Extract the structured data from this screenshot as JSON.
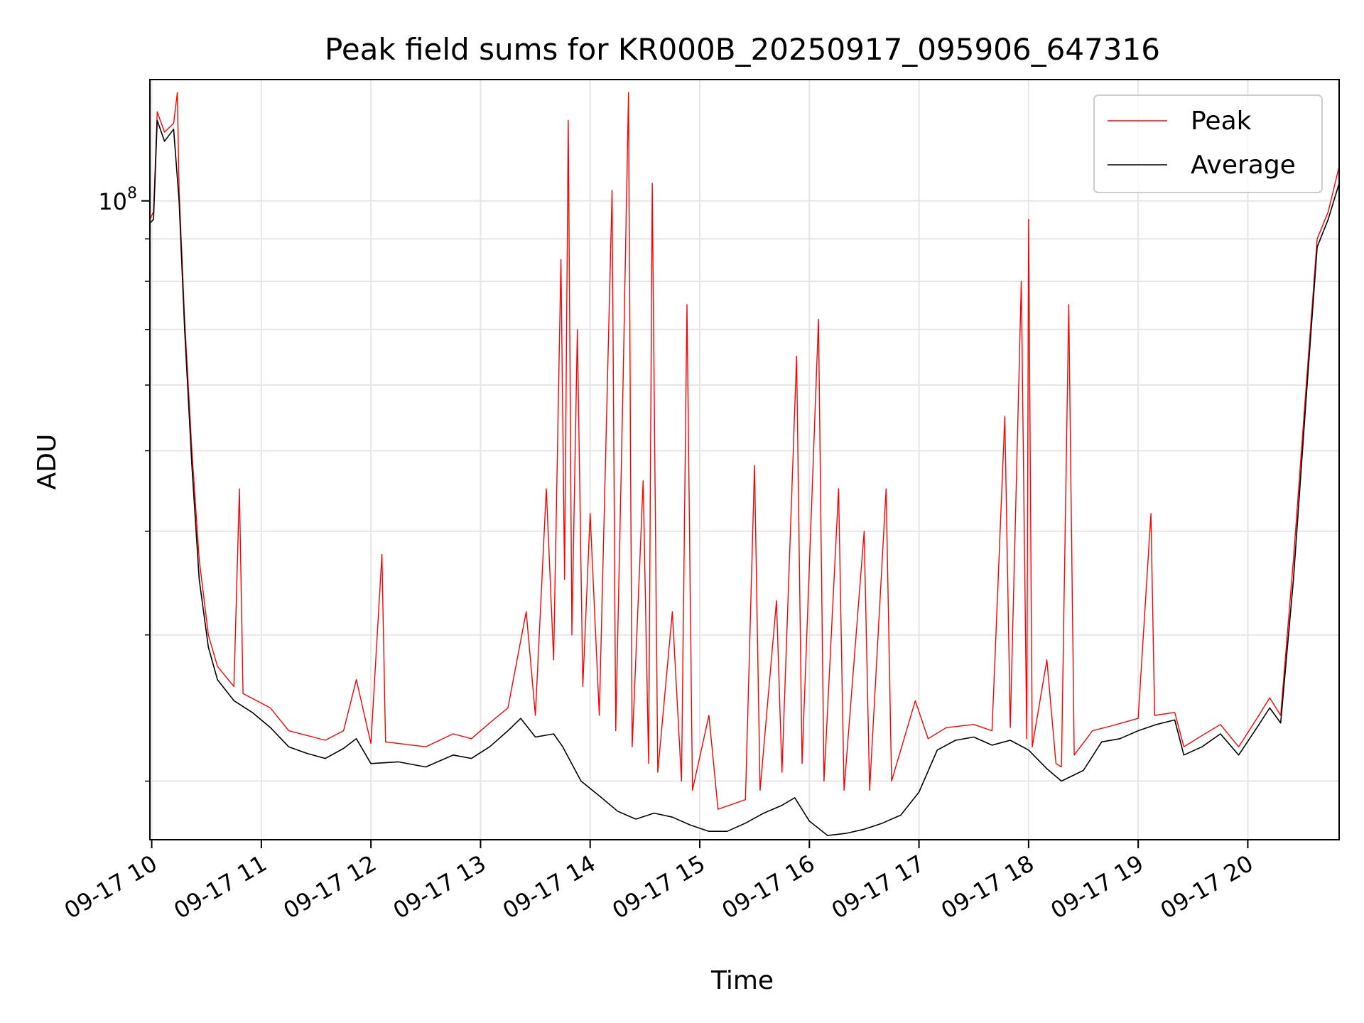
{
  "chart_data": {
    "type": "line",
    "title": "Peak field sums for KR000B_20250917_095906_647316",
    "xlabel": "Time",
    "ylabel": "ADU",
    "y_scale": "log",
    "ylim": [
      17000000,
      140000000
    ],
    "y_major_tick": {
      "value": 100000000,
      "label": "10",
      "exponent": "8"
    },
    "y_minor_ticks": [
      20000000,
      30000000,
      40000000,
      50000000,
      60000000,
      70000000,
      80000000,
      90000000
    ],
    "xlim": [
      "2025-09-17 09:59",
      "2025-09-17 20:50"
    ],
    "x_ticks": [
      {
        "time": "2025-09-17 10:00",
        "label": "09-17 10"
      },
      {
        "time": "2025-09-17 11:00",
        "label": "09-17 11"
      },
      {
        "time": "2025-09-17 12:00",
        "label": "09-17 12"
      },
      {
        "time": "2025-09-17 13:00",
        "label": "09-17 13"
      },
      {
        "time": "2025-09-17 14:00",
        "label": "09-17 14"
      },
      {
        "time": "2025-09-17 15:00",
        "label": "09-17 15"
      },
      {
        "time": "2025-09-17 16:00",
        "label": "09-17 16"
      },
      {
        "time": "2025-09-17 17:00",
        "label": "09-17 17"
      },
      {
        "time": "2025-09-17 18:00",
        "label": "09-17 18"
      },
      {
        "time": "2025-09-17 19:00",
        "label": "09-17 19"
      },
      {
        "time": "2025-09-17 20:00",
        "label": "09-17 20"
      }
    ],
    "grid": true,
    "legend_position": "top-right",
    "series": [
      {
        "name": "Average",
        "color": "#000000",
        "points": [
          [
            "2025-09-17 09:59",
            94000000
          ],
          [
            "2025-09-17 10:01",
            95000000
          ],
          [
            "2025-09-17 10:03",
            125000000
          ],
          [
            "2025-09-17 10:07",
            118000000
          ],
          [
            "2025-09-17 10:12",
            122000000
          ],
          [
            "2025-09-17 10:15",
            100000000
          ],
          [
            "2025-09-17 10:18",
            70000000
          ],
          [
            "2025-09-17 10:22",
            48000000
          ],
          [
            "2025-09-17 10:26",
            35000000
          ],
          [
            "2025-09-17 10:31",
            29000000
          ],
          [
            "2025-09-17 10:36",
            26500000
          ],
          [
            "2025-09-17 10:45",
            25000000
          ],
          [
            "2025-09-17 10:55",
            24200000
          ],
          [
            "2025-09-17 11:05",
            23200000
          ],
          [
            "2025-09-17 11:15",
            22000000
          ],
          [
            "2025-09-17 11:25",
            21600000
          ],
          [
            "2025-09-17 11:35",
            21300000
          ],
          [
            "2025-09-17 11:45",
            21900000
          ],
          [
            "2025-09-17 11:52",
            22500000
          ],
          [
            "2025-09-17 12:00",
            21000000
          ],
          [
            "2025-09-17 12:15",
            21100000
          ],
          [
            "2025-09-17 12:30",
            20800000
          ],
          [
            "2025-09-17 12:45",
            21500000
          ],
          [
            "2025-09-17 12:55",
            21300000
          ],
          [
            "2025-09-17 13:05",
            22000000
          ],
          [
            "2025-09-17 13:15",
            23000000
          ],
          [
            "2025-09-17 13:22",
            23800000
          ],
          [
            "2025-09-17 13:30",
            22600000
          ],
          [
            "2025-09-17 13:40",
            22800000
          ],
          [
            "2025-09-17 13:45",
            22000000
          ],
          [
            "2025-09-17 13:55",
            20000000
          ],
          [
            "2025-09-17 14:05",
            19200000
          ],
          [
            "2025-09-17 14:15",
            18400000
          ],
          [
            "2025-09-17 14:25",
            18000000
          ],
          [
            "2025-09-17 14:35",
            18300000
          ],
          [
            "2025-09-17 14:45",
            18100000
          ],
          [
            "2025-09-17 14:55",
            17700000
          ],
          [
            "2025-09-17 15:05",
            17400000
          ],
          [
            "2025-09-17 15:15",
            17400000
          ],
          [
            "2025-09-17 15:25",
            17800000
          ],
          [
            "2025-09-17 15:35",
            18300000
          ],
          [
            "2025-09-17 15:45",
            18700000
          ],
          [
            "2025-09-17 15:52",
            19100000
          ],
          [
            "2025-09-17 16:00",
            17900000
          ],
          [
            "2025-09-17 16:10",
            17200000
          ],
          [
            "2025-09-17 16:20",
            17300000
          ],
          [
            "2025-09-17 16:30",
            17500000
          ],
          [
            "2025-09-17 16:40",
            17800000
          ],
          [
            "2025-09-17 16:50",
            18200000
          ],
          [
            "2025-09-17 17:00",
            19400000
          ],
          [
            "2025-09-17 17:10",
            21800000
          ],
          [
            "2025-09-17 17:20",
            22400000
          ],
          [
            "2025-09-17 17:30",
            22600000
          ],
          [
            "2025-09-17 17:40",
            22100000
          ],
          [
            "2025-09-17 17:50",
            22400000
          ],
          [
            "2025-09-17 18:00",
            21800000
          ],
          [
            "2025-09-17 18:10",
            20700000
          ],
          [
            "2025-09-17 18:18",
            20000000
          ],
          [
            "2025-09-17 18:30",
            20600000
          ],
          [
            "2025-09-17 18:40",
            22300000
          ],
          [
            "2025-09-17 18:50",
            22500000
          ],
          [
            "2025-09-17 19:00",
            23000000
          ],
          [
            "2025-09-17 19:10",
            23400000
          ],
          [
            "2025-09-17 19:20",
            23700000
          ],
          [
            "2025-09-17 19:25",
            21500000
          ],
          [
            "2025-09-17 19:35",
            22000000
          ],
          [
            "2025-09-17 19:45",
            22800000
          ],
          [
            "2025-09-17 19:55",
            21500000
          ],
          [
            "2025-09-17 20:05",
            23200000
          ],
          [
            "2025-09-17 20:12",
            24500000
          ],
          [
            "2025-09-17 20:18",
            23500000
          ],
          [
            "2025-09-17 20:25",
            35000000
          ],
          [
            "2025-09-17 20:32",
            58000000
          ],
          [
            "2025-09-17 20:38",
            88000000
          ],
          [
            "2025-09-17 20:44",
            95000000
          ],
          [
            "2025-09-17 20:50",
            105000000
          ]
        ]
      },
      {
        "name": "Peak",
        "color": "#ff0000",
        "points": [
          [
            "2025-09-17 09:59",
            95000000
          ],
          [
            "2025-09-17 10:01",
            97000000
          ],
          [
            "2025-09-17 10:03",
            128000000
          ],
          [
            "2025-09-17 10:07",
            121000000
          ],
          [
            "2025-09-17 10:12",
            124000000
          ],
          [
            "2025-09-17 10:14",
            135000000
          ],
          [
            "2025-09-17 10:15",
            103000000
          ],
          [
            "2025-09-17 10:18",
            72000000
          ],
          [
            "2025-09-17 10:22",
            50000000
          ],
          [
            "2025-09-17 10:26",
            37000000
          ],
          [
            "2025-09-17 10:31",
            30000000
          ],
          [
            "2025-09-17 10:36",
            27500000
          ],
          [
            "2025-09-17 10:45",
            26000000
          ],
          [
            "2025-09-17 10:48",
            45000000
          ],
          [
            "2025-09-17 10:50",
            25500000
          ],
          [
            "2025-09-17 11:05",
            24500000
          ],
          [
            "2025-09-17 11:15",
            23000000
          ],
          [
            "2025-09-17 11:35",
            22400000
          ],
          [
            "2025-09-17 11:45",
            23000000
          ],
          [
            "2025-09-17 11:52",
            26500000
          ],
          [
            "2025-09-17 12:00",
            22200000
          ],
          [
            "2025-09-17 12:06",
            37500000
          ],
          [
            "2025-09-17 12:08",
            22300000
          ],
          [
            "2025-09-17 12:30",
            22000000
          ],
          [
            "2025-09-17 12:45",
            22800000
          ],
          [
            "2025-09-17 12:55",
            22500000
          ],
          [
            "2025-09-17 13:05",
            23500000
          ],
          [
            "2025-09-17 13:15",
            24500000
          ],
          [
            "2025-09-17 13:25",
            32000000
          ],
          [
            "2025-09-17 13:30",
            24000000
          ],
          [
            "2025-09-17 13:36",
            45000000
          ],
          [
            "2025-09-17 13:40",
            28000000
          ],
          [
            "2025-09-17 13:44",
            85000000
          ],
          [
            "2025-09-17 13:46",
            35000000
          ],
          [
            "2025-09-17 13:48",
            125000000
          ],
          [
            "2025-09-17 13:50",
            30000000
          ],
          [
            "2025-09-17 13:53",
            70000000
          ],
          [
            "2025-09-17 13:56",
            26000000
          ],
          [
            "2025-09-17 14:00",
            42000000
          ],
          [
            "2025-09-17 14:05",
            24000000
          ],
          [
            "2025-09-17 14:12",
            103000000
          ],
          [
            "2025-09-17 14:14",
            23000000
          ],
          [
            "2025-09-17 14:18",
            60000000
          ],
          [
            "2025-09-17 14:21",
            135000000
          ],
          [
            "2025-09-17 14:23",
            22000000
          ],
          [
            "2025-09-17 14:29",
            46000000
          ],
          [
            "2025-09-17 14:32",
            21000000
          ],
          [
            "2025-09-17 14:34",
            105000000
          ],
          [
            "2025-09-17 14:37",
            20500000
          ],
          [
            "2025-09-17 14:45",
            32000000
          ],
          [
            "2025-09-17 14:50",
            20000000
          ],
          [
            "2025-09-17 14:53",
            75000000
          ],
          [
            "2025-09-17 14:56",
            19500000
          ],
          [
            "2025-09-17 15:05",
            24000000
          ],
          [
            "2025-09-17 15:10",
            18500000
          ],
          [
            "2025-09-17 15:25",
            19000000
          ],
          [
            "2025-09-17 15:30",
            48000000
          ],
          [
            "2025-09-17 15:33",
            19500000
          ],
          [
            "2025-09-17 15:42",
            33000000
          ],
          [
            "2025-09-17 15:45",
            20500000
          ],
          [
            "2025-09-17 15:53",
            65000000
          ],
          [
            "2025-09-17 15:56",
            21000000
          ],
          [
            "2025-09-17 16:05",
            72000000
          ],
          [
            "2025-09-17 16:08",
            20000000
          ],
          [
            "2025-09-17 16:16",
            45000000
          ],
          [
            "2025-09-17 16:19",
            19500000
          ],
          [
            "2025-09-17 16:30",
            40000000
          ],
          [
            "2025-09-17 16:33",
            19500000
          ],
          [
            "2025-09-17 16:42",
            45000000
          ],
          [
            "2025-09-17 16:45",
            20000000
          ],
          [
            "2025-09-17 16:58",
            25000000
          ],
          [
            "2025-09-17 17:05",
            22500000
          ],
          [
            "2025-09-17 17:15",
            23200000
          ],
          [
            "2025-09-17 17:30",
            23400000
          ],
          [
            "2025-09-17 17:40",
            23000000
          ],
          [
            "2025-09-17 17:47",
            55000000
          ],
          [
            "2025-09-17 17:50",
            23200000
          ],
          [
            "2025-09-17 17:56",
            80000000
          ],
          [
            "2025-09-17 17:59",
            22500000
          ],
          [
            "2025-09-17 18:00",
            95000000
          ],
          [
            "2025-09-17 18:02",
            22000000
          ],
          [
            "2025-09-17 18:10",
            28000000
          ],
          [
            "2025-09-17 18:15",
            21000000
          ],
          [
            "2025-09-17 18:18",
            20800000
          ],
          [
            "2025-09-17 18:22",
            75000000
          ],
          [
            "2025-09-17 18:25",
            21500000
          ],
          [
            "2025-09-17 18:35",
            23000000
          ],
          [
            "2025-09-17 18:45",
            23300000
          ],
          [
            "2025-09-17 19:00",
            23800000
          ],
          [
            "2025-09-17 19:07",
            42000000
          ],
          [
            "2025-09-17 19:09",
            24000000
          ],
          [
            "2025-09-17 19:20",
            24200000
          ],
          [
            "2025-09-17 19:25",
            22000000
          ],
          [
            "2025-09-17 19:35",
            22700000
          ],
          [
            "2025-09-17 19:45",
            23400000
          ],
          [
            "2025-09-17 19:55",
            22000000
          ],
          [
            "2025-09-17 20:05",
            23800000
          ],
          [
            "2025-09-17 20:12",
            25200000
          ],
          [
            "2025-09-17 20:18",
            24000000
          ],
          [
            "2025-09-17 20:25",
            37000000
          ],
          [
            "2025-09-17 20:32",
            60000000
          ],
          [
            "2025-09-17 20:38",
            90000000
          ],
          [
            "2025-09-17 20:44",
            97000000
          ],
          [
            "2025-09-17 20:50",
            110000000
          ]
        ]
      }
    ]
  }
}
